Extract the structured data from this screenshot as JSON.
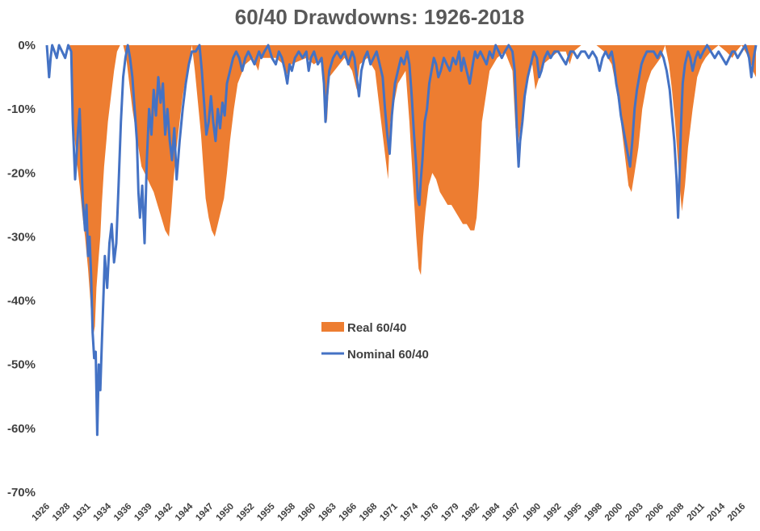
{
  "chart_data": {
    "type": "area",
    "title": "60/40 Drawdowns: 1926-2018",
    "xlabel": "",
    "ylabel": "",
    "xlim": [
      1926.0,
      2018.9
    ],
    "ylim": [
      -70,
      0
    ],
    "yticks": [
      0,
      -10,
      -20,
      -30,
      -40,
      -50,
      -60,
      -70
    ],
    "ytick_labels": [
      "0%",
      "-10%",
      "-20%",
      "-30%",
      "-40%",
      "-50%",
      "-60%",
      "-70%"
    ],
    "xticks": [
      "1926",
      "1928",
      "1931",
      "1934",
      "1936",
      "1939",
      "1942",
      "1944",
      "1947",
      "1950",
      "1952",
      "1955",
      "1958",
      "1960",
      "1963",
      "1966",
      "1968",
      "1971",
      "1974",
      "1976",
      "1979",
      "1982",
      "1984",
      "1987",
      "1990",
      "1992",
      "1995",
      "1998",
      "2000",
      "2003",
      "2006",
      "2008",
      "2011",
      "2014",
      "2016"
    ],
    "grid": false,
    "legend": "center",
    "colors": {
      "real": "#ED7D31",
      "nominal": "#4472C4",
      "text": "#404040",
      "title": "#595959"
    },
    "series": [
      {
        "name": "Real 60/40",
        "kind": "area",
        "x": [
          1926.0,
          1928.0,
          1929.0,
          1929.3,
          1929.6,
          1929.9,
          1930.3,
          1930.7,
          1931.0,
          1931.4,
          1931.7,
          1932.0,
          1932.3,
          1932.5,
          1932.8,
          1933.0,
          1933.2,
          1933.5,
          1933.8,
          1934.0,
          1934.4,
          1934.8,
          1935.2,
          1935.6,
          1936.0,
          1936.4,
          1936.8,
          1937.2,
          1937.6,
          1938.0,
          1938.4,
          1938.8,
          1939.2,
          1939.6,
          1940.0,
          1940.5,
          1941.0,
          1941.5,
          1942.0,
          1942.3,
          1942.6,
          1943.0,
          1943.4,
          1943.8,
          1944.2,
          1944.6,
          1945.0,
          1945.4,
          1945.8,
          1946.2,
          1946.5,
          1946.8,
          1947.2,
          1947.6,
          1948.0,
          1948.4,
          1948.8,
          1949.2,
          1949.6,
          1950.0,
          1950.5,
          1951.0,
          1952.0,
          1953.0,
          1953.7,
          1954.0,
          1956.0,
          1957.0,
          1957.6,
          1958.0,
          1960.0,
          1961.0,
          1962.0,
          1962.4,
          1962.7,
          1963.0,
          1965.0,
          1966.0,
          1966.6,
          1967.0,
          1968.0,
          1969.0,
          1969.5,
          1970.0,
          1970.4,
          1970.7,
          1971.0,
          1972.0,
          1973.0,
          1973.5,
          1974.0,
          1974.4,
          1974.7,
          1975.0,
          1975.3,
          1975.6,
          1976.0,
          1976.5,
          1977.0,
          1977.5,
          1978.0,
          1978.5,
          1979.0,
          1979.5,
          1980.0,
          1980.5,
          1981.0,
          1981.5,
          1982.0,
          1982.3,
          1982.6,
          1983.0,
          1984.0,
          1985.0,
          1986.0,
          1987.0,
          1987.4,
          1987.8,
          1988.3,
          1988.8,
          1989.2,
          1989.6,
          1990.0,
          1990.5,
          1991.0,
          1992.0,
          1993.0,
          1994.0,
          1994.5,
          1995.0,
          1996.0,
          1997.0,
          1998.0,
          1999.0,
          2000.0,
          2000.5,
          2001.0,
          2001.4,
          2001.8,
          2002.2,
          2002.6,
          2003.0,
          2003.5,
          2004.0,
          2004.6,
          2005.2,
          2005.8,
          2006.4,
          2007.0,
          2007.5,
          2007.9,
          2008.3,
          2008.6,
          2008.9,
          2009.2,
          2009.6,
          2010.0,
          2010.6,
          2011.2,
          2011.8,
          2012.3,
          2013.0,
          2014.0,
          2015.0,
          2015.8,
          2016.3,
          2017.0,
          2018.0,
          2018.5,
          2018.9
        ],
        "values": [
          0,
          0,
          0,
          -8,
          -14,
          -18,
          -22,
          -27,
          -30,
          -35,
          -40,
          -46,
          -44,
          -38,
          -33,
          -30,
          -25,
          -19,
          -15,
          -12,
          -8,
          -4,
          -1,
          0,
          0,
          -2,
          -6,
          -10,
          -13,
          -16,
          -19,
          -20,
          -21,
          -22,
          -23,
          -25,
          -27,
          -29,
          -30,
          -26,
          -21,
          -16,
          -12,
          -8,
          -5,
          -3,
          0,
          -4,
          -9,
          -14,
          -19,
          -24,
          -27,
          -29,
          -30,
          -28,
          -26,
          -24,
          -20,
          -15,
          -10,
          -6,
          -3,
          -2,
          -4,
          -2,
          -2,
          -3,
          -5,
          -3,
          -2,
          -3,
          -2,
          -8,
          -12,
          -5,
          -2,
          -4,
          -7,
          -3,
          -2,
          -4,
          -9,
          -14,
          -18,
          -21,
          -12,
          -6,
          -4,
          -12,
          -22,
          -30,
          -35,
          -36,
          -30,
          -26,
          -22,
          -20,
          -21,
          -23,
          -24,
          -25,
          -25,
          -26,
          -27,
          -28,
          -28,
          -29,
          -29,
          -27,
          -22,
          -12,
          -4,
          -2,
          -1,
          -4,
          -13,
          -15,
          -11,
          -7,
          -4,
          -3,
          -7,
          -5,
          -3,
          -2,
          -1,
          -1,
          -3,
          -1,
          0,
          0,
          0,
          -1,
          -3,
          -6,
          -10,
          -14,
          -18,
          -22,
          -23,
          -20,
          -16,
          -10,
          -6,
          -4,
          -3,
          -2,
          0,
          -3,
          -7,
          -12,
          -17,
          -22,
          -26,
          -22,
          -16,
          -10,
          -5,
          -3,
          -2,
          -1,
          0,
          -1,
          -2,
          -1,
          0,
          -2,
          -4,
          -5
        ]
      },
      {
        "name": "Nominal 60/40",
        "kind": "line",
        "x": [
          1926.0,
          1926.3,
          1926.5,
          1926.7,
          1927.0,
          1927.3,
          1927.6,
          1928.0,
          1928.4,
          1928.8,
          1929.2,
          1929.4,
          1929.7,
          1930.0,
          1930.3,
          1930.5,
          1930.7,
          1931.0,
          1931.2,
          1931.4,
          1931.6,
          1931.8,
          1932.0,
          1932.2,
          1932.4,
          1932.6,
          1932.8,
          1933.0,
          1933.2,
          1933.4,
          1933.6,
          1933.9,
          1934.2,
          1934.5,
          1934.8,
          1935.1,
          1935.4,
          1935.7,
          1936.0,
          1936.3,
          1936.6,
          1936.9,
          1937.2,
          1937.5,
          1937.8,
          1938.0,
          1938.2,
          1938.5,
          1938.8,
          1939.1,
          1939.4,
          1939.7,
          1940.0,
          1940.3,
          1940.6,
          1940.9,
          1941.2,
          1941.5,
          1941.8,
          1942.1,
          1942.4,
          1942.7,
          1943.0,
          1943.4,
          1943.8,
          1944.2,
          1944.6,
          1945.0,
          1945.5,
          1946.0,
          1946.3,
          1946.6,
          1946.9,
          1947.2,
          1947.5,
          1947.8,
          1948.1,
          1948.4,
          1948.7,
          1949.0,
          1949.3,
          1949.6,
          1950.0,
          1950.4,
          1950.8,
          1951.2,
          1951.6,
          1952.0,
          1952.4,
          1952.8,
          1953.2,
          1953.5,
          1953.8,
          1954.1,
          1954.5,
          1955.0,
          1955.5,
          1956.0,
          1956.4,
          1956.8,
          1957.2,
          1957.5,
          1957.8,
          1958.1,
          1958.5,
          1959.0,
          1959.5,
          1960.0,
          1960.3,
          1960.6,
          1961.0,
          1961.5,
          1962.0,
          1962.3,
          1962.5,
          1962.7,
          1963.0,
          1963.5,
          1964.0,
          1964.5,
          1965.0,
          1965.5,
          1966.0,
          1966.3,
          1966.6,
          1966.9,
          1967.2,
          1967.6,
          1968.0,
          1968.4,
          1968.8,
          1969.2,
          1969.6,
          1970.0,
          1970.3,
          1970.6,
          1970.9,
          1971.2,
          1971.6,
          1972.0,
          1972.4,
          1972.8,
          1973.2,
          1973.5,
          1973.8,
          1974.1,
          1974.4,
          1974.6,
          1974.8,
          1975.0,
          1975.2,
          1975.5,
          1975.8,
          1976.1,
          1976.4,
          1976.7,
          1977.0,
          1977.3,
          1977.6,
          1978.0,
          1978.4,
          1978.8,
          1979.2,
          1979.6,
          1980.0,
          1980.3,
          1980.6,
          1981.0,
          1981.4,
          1981.8,
          1982.1,
          1982.4,
          1982.8,
          1983.2,
          1983.6,
          1984.0,
          1984.4,
          1984.8,
          1985.2,
          1985.6,
          1986.0,
          1986.5,
          1987.0,
          1987.3,
          1987.6,
          1987.8,
          1988.0,
          1988.3,
          1988.6,
          1989.0,
          1989.4,
          1989.8,
          1990.2,
          1990.5,
          1990.8,
          1991.2,
          1991.6,
          1992.0,
          1992.5,
          1993.0,
          1993.5,
          1994.0,
          1994.3,
          1994.6,
          1995.0,
          1995.5,
          1996.0,
          1996.5,
          1997.0,
          1997.5,
          1998.0,
          1998.4,
          1998.8,
          1999.2,
          1999.6,
          2000.0,
          2000.3,
          2000.6,
          2000.9,
          2001.2,
          2001.5,
          2001.8,
          2002.1,
          2002.4,
          2002.7,
          2003.0,
          2003.3,
          2003.6,
          2003.9,
          2004.2,
          2004.6,
          2005.0,
          2005.5,
          2006.0,
          2006.4,
          2006.8,
          2007.2,
          2007.6,
          2007.9,
          2008.2,
          2008.5,
          2008.7,
          2008.9,
          2009.1,
          2009.3,
          2009.6,
          2010.0,
          2010.3,
          2010.6,
          2011.0,
          2011.3,
          2011.6,
          2012.0,
          2012.5,
          2013.0,
          2013.5,
          2014.0,
          2014.5,
          2015.0,
          2015.4,
          2015.8,
          2016.1,
          2016.5,
          2017.0,
          2017.5,
          2018.0,
          2018.3,
          2018.6,
          2018.9
        ],
        "values": [
          0,
          -5,
          -2,
          0,
          -1,
          -2,
          0,
          -1,
          -2,
          0,
          -1,
          -12,
          -21,
          -15,
          -10,
          -17,
          -24,
          -29,
          -25,
          -33,
          -30,
          -36,
          -45,
          -49,
          -48,
          -61,
          -50,
          -54,
          -47,
          -40,
          -33,
          -38,
          -31,
          -28,
          -34,
          -31,
          -22,
          -12,
          -5,
          -2,
          0,
          -2,
          -5,
          -10,
          -15,
          -23,
          -27,
          -22,
          -31,
          -18,
          -10,
          -14,
          -7,
          -11,
          -5,
          -9,
          -6,
          -14,
          -10,
          -15,
          -18,
          -13,
          -21,
          -15,
          -10,
          -6,
          -3,
          -1,
          -1,
          0,
          -4,
          -9,
          -14,
          -12,
          -8,
          -12,
          -15,
          -10,
          -13,
          -9,
          -11,
          -6,
          -4,
          -2,
          -1,
          -2,
          -4,
          -2,
          -1,
          -2,
          -3,
          -2,
          -1,
          -2,
          -1,
          0,
          -2,
          -3,
          -1,
          -2,
          -4,
          -6,
          -3,
          -4,
          -2,
          -1,
          -2,
          -1,
          -4,
          -2,
          -1,
          -3,
          -2,
          -6,
          -12,
          -8,
          -4,
          -2,
          -1,
          -2,
          -1,
          -3,
          -1,
          -2,
          -5,
          -8,
          -4,
          -2,
          -1,
          -3,
          -2,
          -1,
          -3,
          -5,
          -10,
          -14,
          -17,
          -11,
          -6,
          -4,
          -2,
          -3,
          -1,
          -3,
          -8,
          -14,
          -19,
          -24,
          -25,
          -21,
          -18,
          -12,
          -10,
          -6,
          -4,
          -2,
          -3,
          -5,
          -4,
          -2,
          -3,
          -4,
          -2,
          -3,
          -1,
          -4,
          -2,
          -4,
          -6,
          -3,
          -1,
          -2,
          -1,
          -2,
          -3,
          -1,
          -2,
          0,
          -1,
          -2,
          -1,
          0,
          -1,
          -4,
          -14,
          -19,
          -15,
          -12,
          -8,
          -5,
          -3,
          -1,
          -2,
          -5,
          -4,
          -2,
          -1,
          -2,
          -1,
          -1,
          -2,
          -3,
          -2,
          -1,
          -1,
          -2,
          -1,
          -1,
          -2,
          -1,
          -2,
          -4,
          -2,
          -1,
          -2,
          -1,
          -3,
          -6,
          -8,
          -11,
          -13,
          -15,
          -17,
          -19,
          -15,
          -10,
          -7,
          -5,
          -3,
          -2,
          -1,
          -1,
          -1,
          -2,
          -1,
          -2,
          -4,
          -7,
          -11,
          -15,
          -21,
          -27,
          -20,
          -12,
          -6,
          -3,
          -1,
          -2,
          -4,
          -2,
          -1,
          -2,
          -1,
          0,
          -1,
          -2,
          -1,
          -2,
          -3,
          -2,
          -1,
          -1,
          -2,
          -1,
          0,
          -2,
          -5,
          -2,
          0
        ]
      }
    ]
  }
}
